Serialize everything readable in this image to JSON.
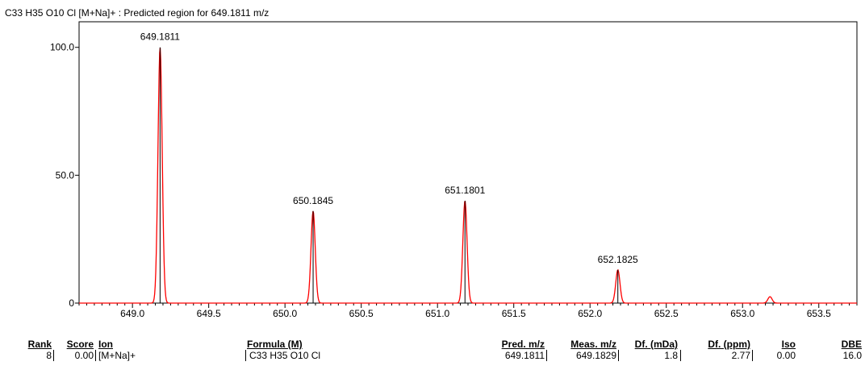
{
  "chart_data": {
    "type": "line",
    "title": "C33 H35 O10 Cl [M+Na]+ : Predicted region for 649.1811 m/z",
    "xlim": [
      648.65,
      653.75
    ],
    "ylim": [
      0,
      110
    ],
    "x_ticks": [
      "649.0",
      "649.5",
      "650.0",
      "650.5",
      "651.0",
      "651.5",
      "652.0",
      "652.5",
      "653.0",
      "653.5"
    ],
    "y_ticks": [
      "0",
      "50.0",
      "100.0"
    ],
    "peaks": [
      {
        "mz": 649.1811,
        "intensity": 100,
        "label": "649.1811"
      },
      {
        "mz": 650.1845,
        "intensity": 36,
        "label": "650.1845"
      },
      {
        "mz": 651.1801,
        "intensity": 40,
        "label": "651.1801"
      },
      {
        "mz": 652.1825,
        "intensity": 13,
        "label": "652.1825"
      },
      {
        "mz": 653.18,
        "intensity": 2.5,
        "label": ""
      }
    ],
    "colors": {
      "profile": "#ff0000",
      "stick": "#000000"
    }
  },
  "results_table": {
    "headers": {
      "rank": "Rank",
      "score": "Score",
      "ion": "Ion",
      "formula": "Formula (M)",
      "pred_mz": "Pred. m/z",
      "meas_mz": "Meas. m/z",
      "df_mda": "Df. (mDa)",
      "df_ppm": "Df. (ppm)",
      "iso": "Iso",
      "dbe": "DBE"
    },
    "row": {
      "rank": "8",
      "score": "0.00",
      "ion": "[M+Na]+",
      "formula": "C33 H35 O10 Cl",
      "pred_mz": "649.1811",
      "meas_mz": "649.1829",
      "df_mda": "1.8",
      "df_ppm": "2.77",
      "iso": "0.00",
      "dbe": "16.0"
    }
  }
}
